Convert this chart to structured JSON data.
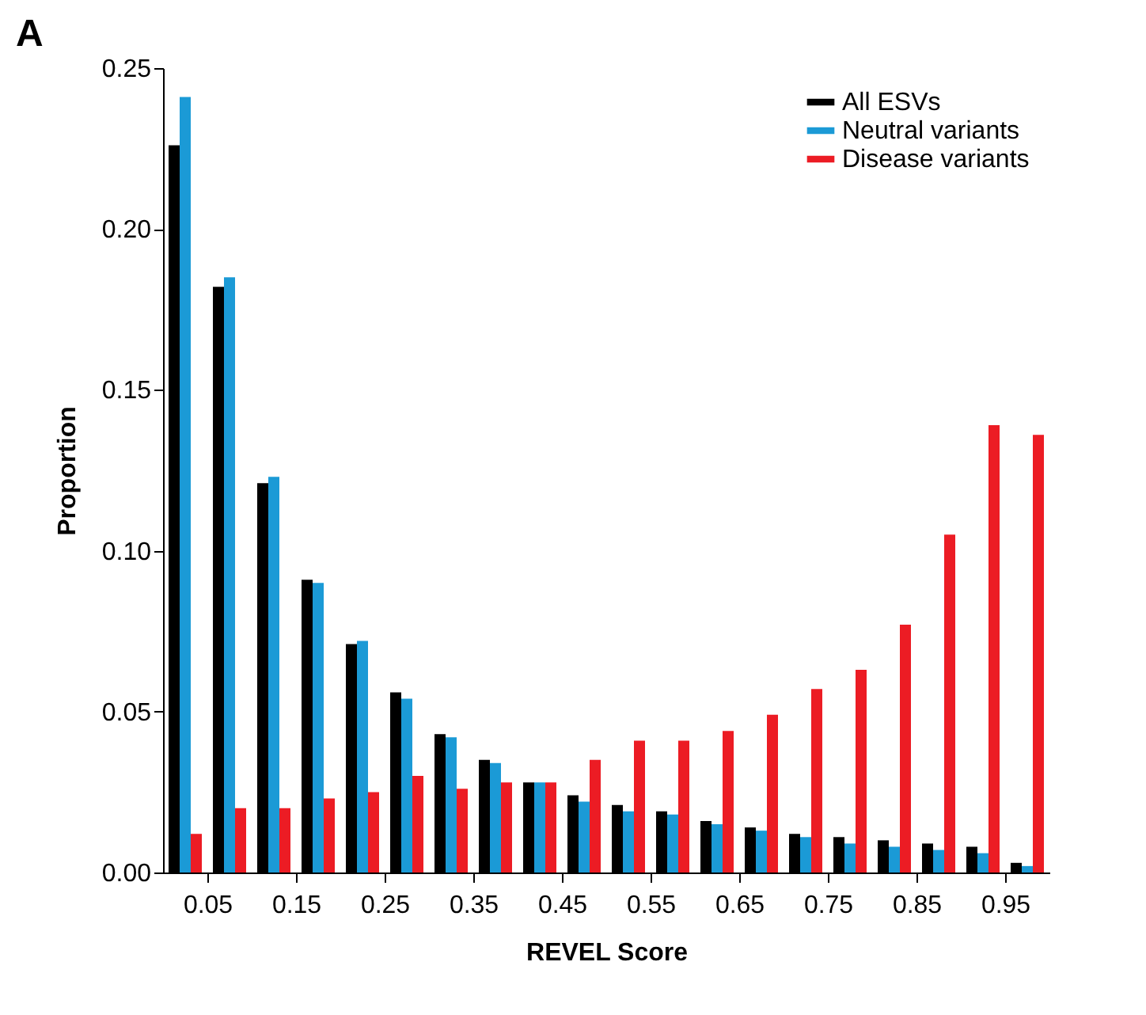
{
  "chart_data": {
    "type": "bar",
    "xlabel": "REVEL Score",
    "ylabel": "Proportion",
    "annotations": [
      "A"
    ],
    "x": [
      0.025,
      0.075,
      0.125,
      0.175,
      0.225,
      0.275,
      0.325,
      0.375,
      0.425,
      0.475,
      0.525,
      0.575,
      0.625,
      0.675,
      0.725,
      0.775,
      0.825,
      0.875,
      0.925,
      0.975
    ],
    "xlim": [
      0,
      1
    ],
    "xticks": [
      0.05,
      0.15,
      0.25,
      0.35,
      0.45,
      0.55,
      0.65,
      0.75,
      0.85,
      0.95
    ],
    "ylim": [
      0,
      0.25
    ],
    "yticks": [
      {
        "value": 0,
        "label": "0.00"
      },
      {
        "value": 0.05,
        "label": "0.05"
      },
      {
        "value": 0.1,
        "label": "0.10"
      },
      {
        "value": 0.15,
        "label": "0.15"
      },
      {
        "value": 0.2,
        "label": "0.20"
      },
      {
        "value": 0.25,
        "label": "0.25"
      }
    ],
    "grid": false,
    "legend": "top right",
    "series": [
      {
        "name": "All ESVs",
        "color": "#000000",
        "values": [
          0.226,
          0.182,
          0.121,
          0.091,
          0.071,
          0.056,
          0.043,
          0.035,
          0.028,
          0.024,
          0.021,
          0.019,
          0.016,
          0.014,
          0.012,
          0.011,
          0.01,
          0.009,
          0.008,
          0.003
        ]
      },
      {
        "name": "Neutral variants",
        "color": "#1b9ad6",
        "values": [
          0.241,
          0.185,
          0.123,
          0.09,
          0.072,
          0.054,
          0.042,
          0.034,
          0.028,
          0.022,
          0.019,
          0.018,
          0.015,
          0.013,
          0.011,
          0.009,
          0.008,
          0.007,
          0.006,
          0.002
        ]
      },
      {
        "name": "Disease variants",
        "color": "#ec1c24",
        "values": [
          0.012,
          0.02,
          0.02,
          0.023,
          0.025,
          0.03,
          0.026,
          0.028,
          0.028,
          0.035,
          0.041,
          0.041,
          0.044,
          0.049,
          0.057,
          0.063,
          0.077,
          0.105,
          0.139,
          0.136
        ]
      }
    ]
  }
}
